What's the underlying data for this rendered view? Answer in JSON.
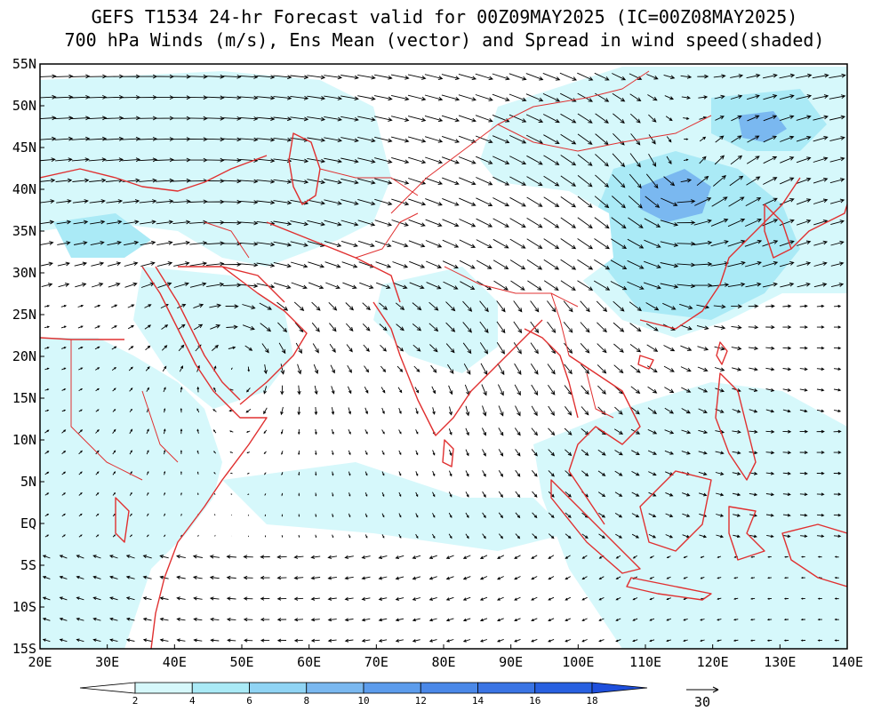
{
  "title": {
    "line1": "GEFS T1534 24-hr Forecast valid for 00Z09MAY2025 (IC=00Z08MAY2025)",
    "line2": "700 hPa Winds (m/s), Ens Mean (vector) and Spread in wind speed(shaded)"
  },
  "map": {
    "lon_range": [
      20,
      140
    ],
    "lat_range": [
      -15,
      55
    ],
    "lat_labels": [
      "55N",
      "50N",
      "45N",
      "40N",
      "35N",
      "30N",
      "25N",
      "20N",
      "15N",
      "10N",
      "5N",
      "EQ",
      "5S",
      "10S",
      "15S"
    ],
    "lon_labels": [
      "20E",
      "30E",
      "40E",
      "50E",
      "60E",
      "70E",
      "80E",
      "90E",
      "100E",
      "110E",
      "120E",
      "130E",
      "140E"
    ],
    "border_color": "#e03030"
  },
  "colorbar": {
    "labels": [
      "2",
      "4",
      "6",
      "8",
      "10",
      "12",
      "14",
      "16",
      "18"
    ],
    "colors": [
      "#ffffff",
      "#d6f8fb",
      "#aaeaf6",
      "#90d4f4",
      "#7ab8f0",
      "#5c9cec",
      "#4a88e8",
      "#3a74e4",
      "#2860e0",
      "#1e4fdc"
    ]
  },
  "reference_vector": {
    "label": "30"
  }
}
